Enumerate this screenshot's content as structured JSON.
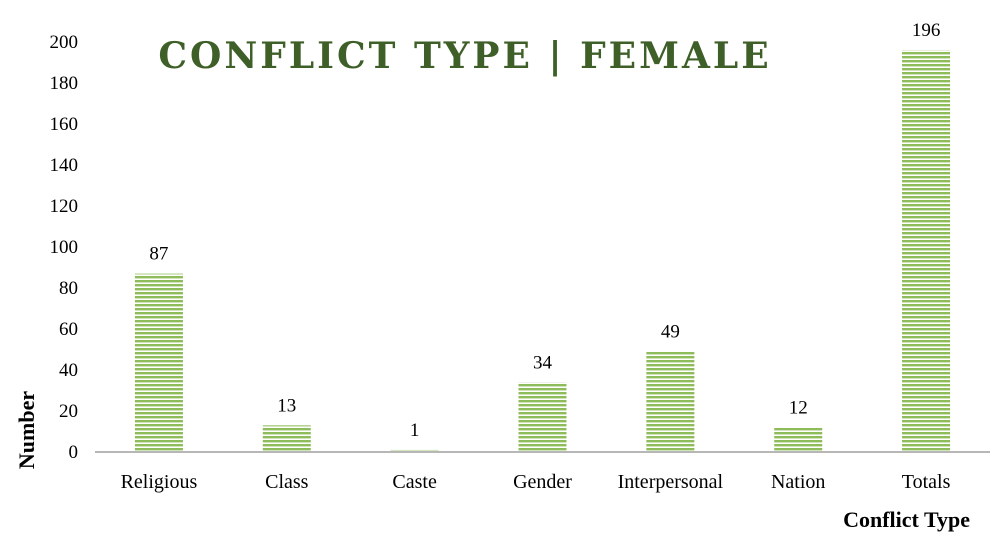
{
  "chart_data": {
    "type": "bar",
    "title": "CONFLICT TYPE | FEMALE",
    "xlabel": "Conflict Type",
    "ylabel": "Number",
    "categories": [
      "Religious",
      "Class",
      "Caste",
      "Gender",
      "Interpersonal",
      "Nation",
      "Totals"
    ],
    "values": [
      87,
      13,
      1,
      34,
      49,
      12,
      196
    ],
    "ylim": [
      0,
      200
    ],
    "yticks": [
      0,
      20,
      40,
      60,
      80,
      100,
      120,
      140,
      160,
      180,
      200
    ],
    "grid": false,
    "legend": "none",
    "bar_color": "#8fbc5a",
    "bar_stripe_color": "#ffffff",
    "title_color": "#3f5f28"
  }
}
